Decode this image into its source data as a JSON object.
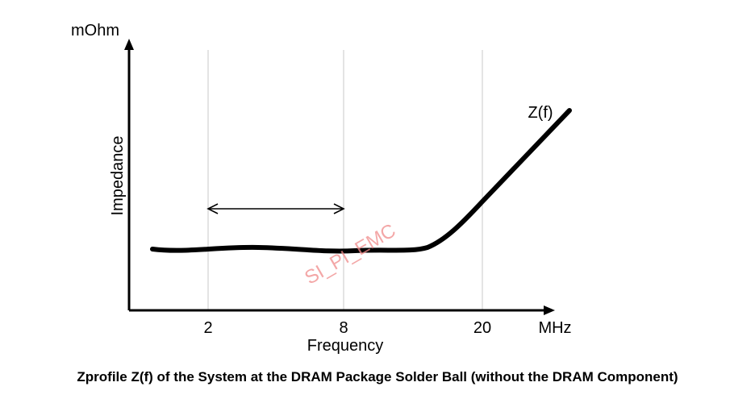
{
  "chart_data": {
    "type": "line",
    "caption": "Zprofile Z(f) of the System at the DRAM Package Solder Ball (without the DRAM Component)",
    "xlabel": "Frequency",
    "x_unit": "MHz",
    "ylabel": "Impedance",
    "y_unit": "mOhm",
    "x_ticks": [
      "2",
      "8",
      "20"
    ],
    "x_grid": true,
    "series": [
      {
        "name": "Z(f)",
        "color": "#000000"
      }
    ],
    "annotations": [
      {
        "type": "double-arrow",
        "from_tick": "2",
        "to_tick": "8"
      }
    ],
    "watermark": "SI_PI_EMC",
    "watermark_color": "#f08a8a"
  }
}
